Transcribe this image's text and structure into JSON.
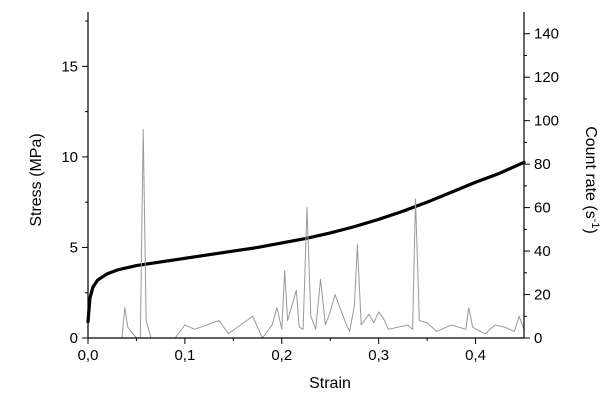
{
  "chart_data": {
    "type": "line",
    "title": "",
    "xlabel": "Strain",
    "ylabel_left": "Stress (MPa)",
    "ylabel_right_base": "Count rate (s",
    "ylabel_right_sup": "-1",
    "ylabel_right_end": ")",
    "xlim": [
      0,
      0.45
    ],
    "ylim_left": [
      0,
      18
    ],
    "ylim_right": [
      0,
      150
    ],
    "x_ticks": [
      {
        "value": 0.0,
        "label": "0,0"
      },
      {
        "value": 0.1,
        "label": "0,1"
      },
      {
        "value": 0.2,
        "label": "0,2"
      },
      {
        "value": 0.3,
        "label": "0,3"
      },
      {
        "value": 0.4,
        "label": "0,4"
      }
    ],
    "y_left_ticks": [
      {
        "value": 0,
        "label": "0"
      },
      {
        "value": 5,
        "label": "5"
      },
      {
        "value": 10,
        "label": "10"
      },
      {
        "value": 15,
        "label": "15"
      }
    ],
    "y_right_ticks": [
      {
        "value": 0,
        "label": "0"
      },
      {
        "value": 20,
        "label": "20"
      },
      {
        "value": 40,
        "label": "40"
      },
      {
        "value": 60,
        "label": "60"
      },
      {
        "value": 80,
        "label": "80"
      },
      {
        "value": 100,
        "label": "100"
      },
      {
        "value": 120,
        "label": "120"
      },
      {
        "value": 140,
        "label": "140"
      }
    ],
    "grid": false,
    "legend": "none",
    "series": [
      {
        "axis": "left",
        "style": "thick-black-line",
        "color": "#000000",
        "x": [
          0.0,
          0.002,
          0.005,
          0.01,
          0.02,
          0.03,
          0.05,
          0.075,
          0.1,
          0.125,
          0.15,
          0.175,
          0.2,
          0.225,
          0.25,
          0.275,
          0.3,
          0.325,
          0.35,
          0.375,
          0.4,
          0.425,
          0.45
        ],
        "y": [
          0.9,
          2.2,
          2.8,
          3.2,
          3.55,
          3.75,
          4.0,
          4.2,
          4.4,
          4.6,
          4.8,
          5.0,
          5.25,
          5.5,
          5.8,
          6.15,
          6.55,
          7.0,
          7.5,
          8.05,
          8.6,
          9.1,
          9.7
        ]
      },
      {
        "axis": "right",
        "style": "thin-gray-spikes",
        "color": "#999999",
        "x": [
          0.0,
          0.035,
          0.038,
          0.041,
          0.05,
          0.054,
          0.057,
          0.06,
          0.065,
          0.09,
          0.1,
          0.11,
          0.135,
          0.14,
          0.145,
          0.17,
          0.18,
          0.19,
          0.195,
          0.2,
          0.203,
          0.206,
          0.215,
          0.218,
          0.222,
          0.226,
          0.23,
          0.235,
          0.24,
          0.245,
          0.25,
          0.255,
          0.265,
          0.27,
          0.275,
          0.278,
          0.282,
          0.29,
          0.295,
          0.3,
          0.305,
          0.31,
          0.33,
          0.335,
          0.338,
          0.342,
          0.35,
          0.36,
          0.375,
          0.39,
          0.393,
          0.397,
          0.405,
          0.41,
          0.42,
          0.43,
          0.44,
          0.445,
          0.45
        ],
        "y": [
          0,
          0,
          14,
          5,
          0,
          0,
          96,
          8,
          0,
          0,
          6,
          4,
          8,
          5,
          2,
          10,
          0,
          6,
          14,
          4,
          31,
          8,
          22,
          5,
          4,
          60,
          10,
          4,
          27,
          6,
          12,
          20,
          8,
          3,
          15,
          43,
          6,
          11,
          7,
          12,
          9,
          4,
          6,
          4,
          64,
          8,
          7,
          3,
          6,
          4,
          14,
          5,
          3,
          2,
          6,
          5,
          3,
          10,
          4
        ]
      }
    ]
  }
}
